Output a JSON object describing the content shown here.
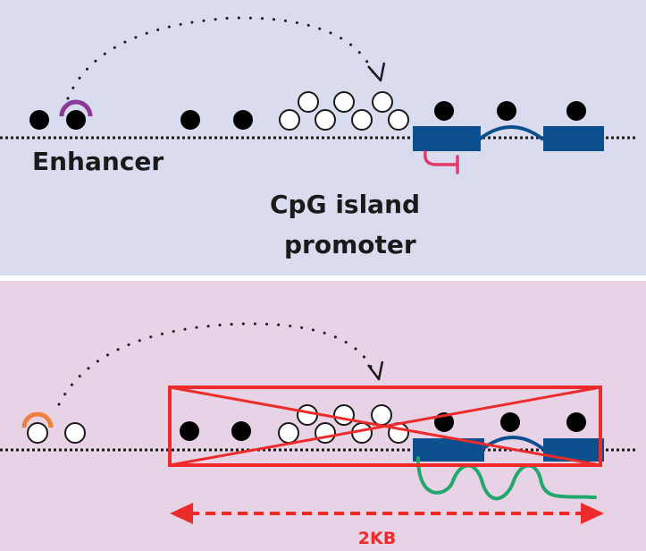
{
  "colors": {
    "top_panel_bg": "#d8dcee",
    "bottom_panel_bg": "#e8d2e6",
    "divider": "#ffffff",
    "dna_line": "#1a1a1a",
    "methylated": "#000000",
    "unmethylated": "#ffffff",
    "exon": "#0b4f8f",
    "intron": "#0b4f8f",
    "activator_top": "#8a3b99",
    "activator_bottom": "#f07f3c",
    "repressor_mark": "#e23a6a",
    "transcript": "#22a86b",
    "cross_box": "#ee2b2b",
    "distance_arrow": "#ee2b2b",
    "text": "#1a1a1a",
    "distance_text": "#ee2b2b"
  },
  "top_panel": {
    "enhancer_label": "Enhancer",
    "promoter_label_line1": "CpG island",
    "promoter_label_line2": "promoter"
  },
  "bottom_panel": {
    "distance_label": "2KB"
  }
}
